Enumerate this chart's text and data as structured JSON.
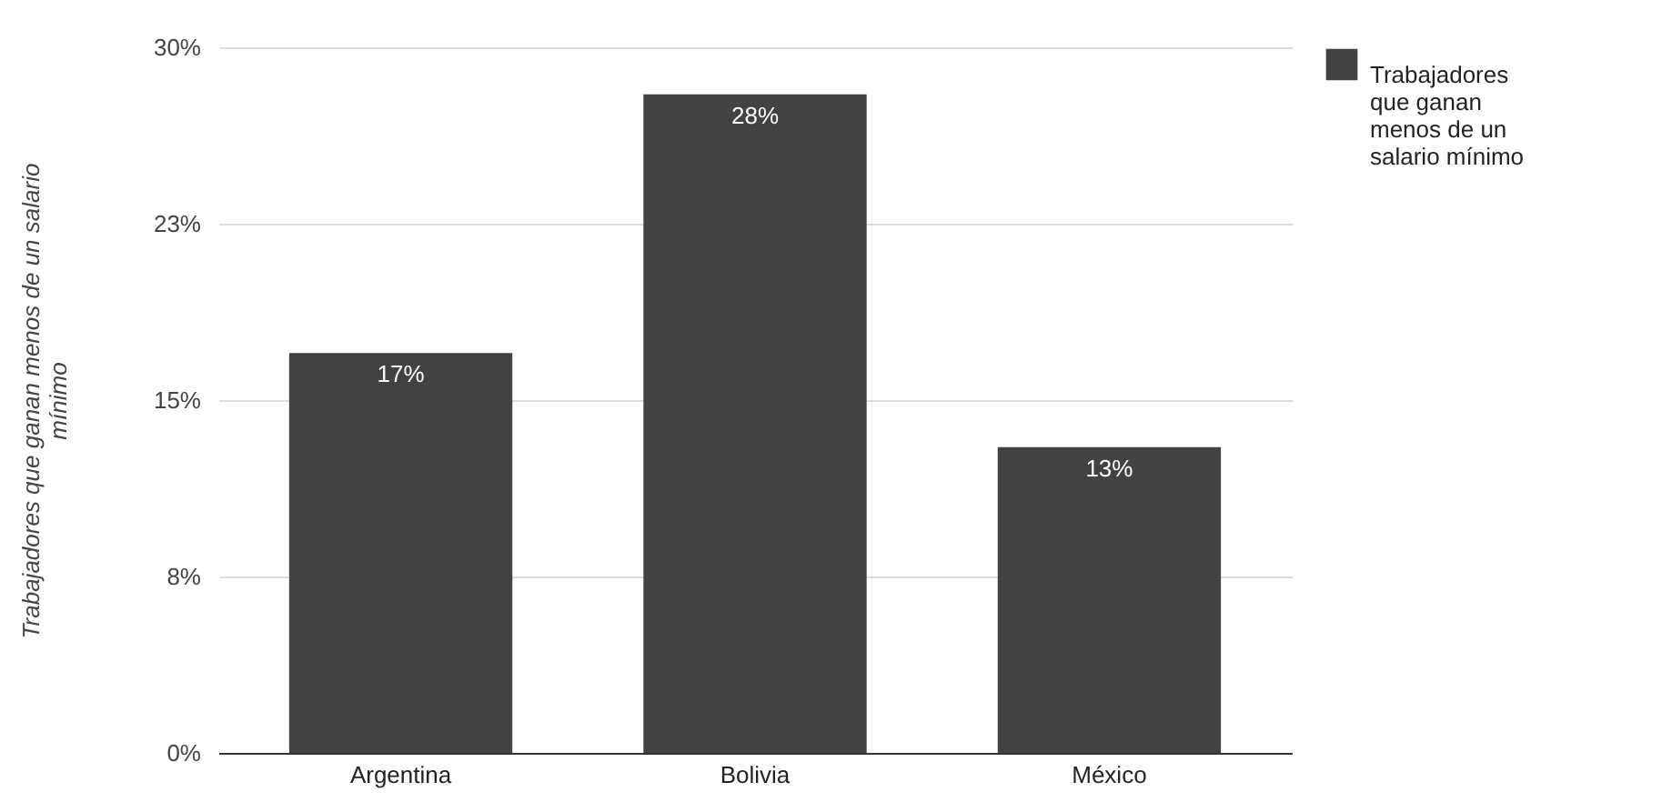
{
  "chart_data": {
    "type": "bar",
    "ylabel": "Trabajadores que ganan menos de un salario mínimo",
    "categories": [
      "Argentina",
      "Bolivia",
      "México"
    ],
    "series": [
      {
        "name": "Trabajadores que ganan menos de un salario mínimo",
        "color": "#424242",
        "values": [
          17,
          28,
          13
        ],
        "value_labels": [
          "17%",
          "28%",
          "13%"
        ]
      }
    ],
    "ylim": [
      0,
      30
    ],
    "yticks": [
      {
        "value": 0,
        "label": "0%"
      },
      {
        "value": 7.5,
        "label": "8%"
      },
      {
        "value": 15,
        "label": "15%"
      },
      {
        "value": 22.5,
        "label": "23%"
      },
      {
        "value": 30,
        "label": "30%"
      }
    ],
    "grid": "y",
    "legend": "top right"
  }
}
